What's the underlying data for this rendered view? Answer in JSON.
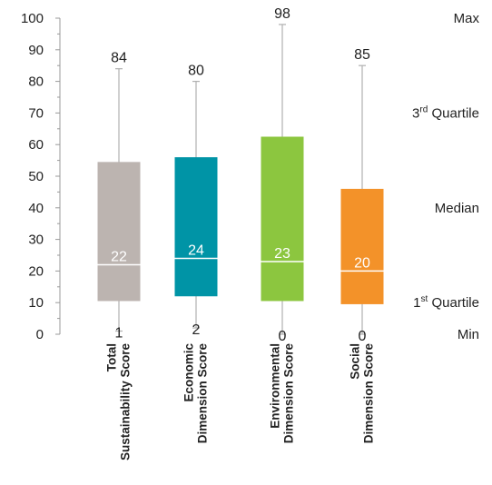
{
  "chart_data": {
    "type": "box",
    "ylim": [
      0,
      100
    ],
    "yticks": [
      "0",
      "10",
      "20",
      "30",
      "40",
      "50",
      "60",
      "70",
      "80",
      "90",
      "100"
    ],
    "grid": false,
    "colors": {
      "axis": "#999999",
      "whisker": "#b0b0b0",
      "median_line": "#ffffff"
    },
    "series": [
      {
        "category": [
          "Total",
          "Sustainability Score"
        ],
        "min": 1,
        "q1": 10.5,
        "median": 22,
        "q3": 54.5,
        "max": 84,
        "color": "#bcb4b0"
      },
      {
        "category": [
          "Economic",
          "Dimension Score"
        ],
        "min": 2,
        "q1": 12,
        "median": 24,
        "q3": 56,
        "max": 80,
        "color": "#0094a6"
      },
      {
        "category": [
          "Environmental",
          "Dimension Score"
        ],
        "min": 0,
        "q1": 10.5,
        "median": 23,
        "q3": 62.5,
        "max": 98,
        "color": "#8cc63f"
      },
      {
        "category": [
          "Social",
          "Dimension Score"
        ],
        "min": 0,
        "q1": 9.5,
        "median": 20,
        "q3": 46,
        "max": 85,
        "color": "#f39229"
      }
    ],
    "legend": [
      {
        "label": "Max",
        "sup": "",
        "suffix": "",
        "at": 100
      },
      {
        "label": "3",
        "sup": "rd",
        "suffix": " Quartile",
        "at": 70
      },
      {
        "label": "Median",
        "sup": "",
        "suffix": "",
        "at": 40
      },
      {
        "label": "1",
        "sup": "st",
        "suffix": " Quartile",
        "at": 10
      },
      {
        "label": "Min",
        "sup": "",
        "suffix": "",
        "at": 0
      }
    ]
  }
}
